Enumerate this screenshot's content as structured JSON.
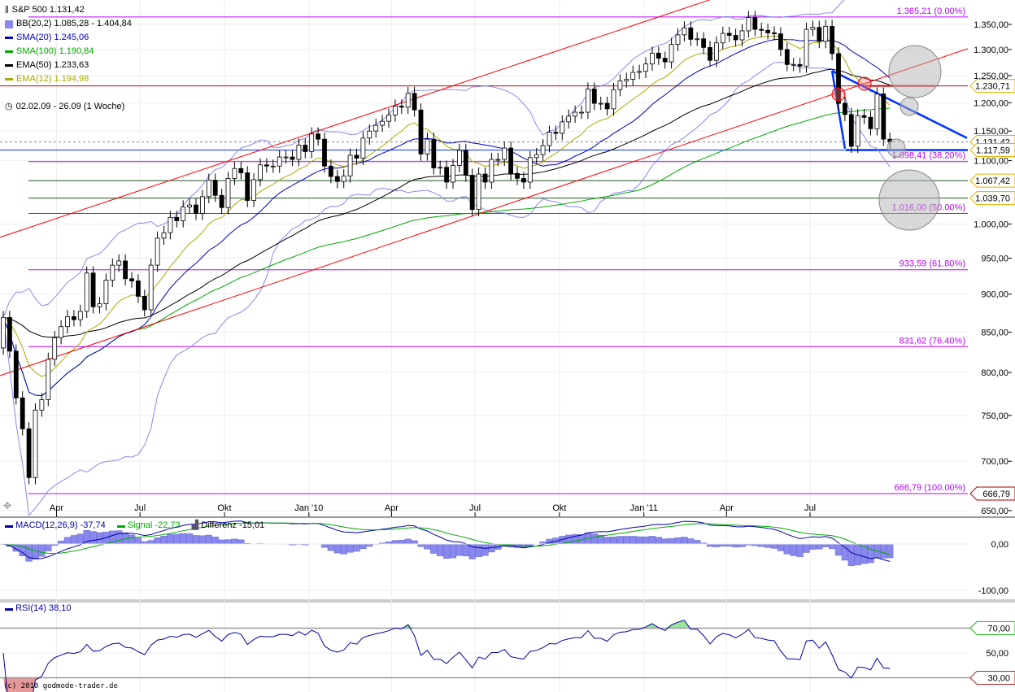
{
  "chart_data": [
    {
      "type": "candlestick",
      "title": "S&P 500 1.131,42",
      "period": "02.02.09 - 26.09 (1 Woche)",
      "scale": "log",
      "ylim": [
        650,
        1400
      ],
      "grid": true,
      "legend_placement": "top-left",
      "legend": [
        {
          "label": "BB(20,2) 1.085,28 - 1.404,84",
          "color": "#8888ee"
        },
        {
          "label": "SMA(20) 1.245,06",
          "color": "#0000bb"
        },
        {
          "label": "SMA(100) 1.190,84",
          "color": "#00aa00"
        },
        {
          "label": "EMA(50) 1.233,63",
          "color": "#000000"
        },
        {
          "label": "EMA(12) 1.194,98",
          "color": "#aaaa00"
        }
      ],
      "x_start": "2009-02-02",
      "x_interval": "1 week",
      "x_tick_labels": [
        "Apr",
        "Jul",
        "Okt",
        "Jan '10",
        "Apr",
        "Jul",
        "Okt",
        "Jan '11",
        "Apr",
        "Jul"
      ],
      "y_tick_labels": [
        "1.350,00",
        "1.300,00",
        "1.250,00",
        "1.200,00",
        "1.150,00",
        "1.100,00",
        "1.000,00",
        "950,00",
        "900,00",
        "850,00",
        "800,00",
        "750,00",
        "700,00",
        "650,00"
      ],
      "y_ticks": [
        1350,
        1300,
        1250,
        1200,
        1150,
        1100,
        1000,
        950,
        900,
        850,
        800,
        750,
        700,
        650
      ],
      "closes": [
        869,
        826,
        770,
        735,
        683,
        756,
        768,
        816,
        843,
        857,
        870,
        866,
        877,
        929,
        883,
        887,
        919,
        940,
        946,
        921,
        918,
        897,
        879,
        940,
        979,
        987,
        1010,
        1005,
        1026,
        1029,
        1016,
        1042,
        1068,
        1044,
        1025,
        1071,
        1087,
        1080,
        1036,
        1069,
        1093,
        1091,
        1091,
        1106,
        1106,
        1102,
        1126,
        1115,
        1145,
        1136,
        1091,
        1074,
        1066,
        1075,
        1109,
        1104,
        1138,
        1150,
        1160,
        1167,
        1178,
        1194,
        1192,
        1217,
        1187,
        1111,
        1136,
        1088,
        1089,
        1065,
        1092,
        1117,
        1076,
        1022,
        1078,
        1065,
        1102,
        1102,
        1121,
        1079,
        1071,
        1065,
        1105,
        1110,
        1125,
        1148,
        1146,
        1166,
        1176,
        1183,
        1183,
        1225,
        1199,
        1199,
        1189,
        1224,
        1240,
        1243,
        1256,
        1258,
        1272,
        1293,
        1283,
        1276,
        1310,
        1329,
        1343,
        1320,
        1321,
        1304,
        1279,
        1313,
        1332,
        1328,
        1319,
        1337,
        1364,
        1340,
        1338,
        1333,
        1331,
        1300,
        1271,
        1271,
        1268,
        1340,
        1344,
        1316,
        1346,
        1292,
        1199,
        1179,
        1124,
        1177,
        1174,
        1154,
        1216,
        1136,
        1131.42
      ],
      "fibonacci": [
        {
          "value": 1365.21,
          "label": "1.365,21 (0.00%)"
        },
        {
          "value": 1098.41,
          "label": "1.098,41 (38.20%)"
        },
        {
          "value": 1016.0,
          "label": "1.016,00 (50.00%)"
        },
        {
          "value": 933.59,
          "label": "933,59 (61.80%)"
        },
        {
          "value": 831.62,
          "label": "831,62 (76.40%)"
        },
        {
          "value": 666.79,
          "label": "666,79 (100.00%)"
        }
      ],
      "price_tags": [
        {
          "value": 1230.71,
          "label": "1.230,71",
          "color": "#e0b000"
        },
        {
          "value": 1131.42,
          "label": "1.131,42",
          "color": "#e0b000"
        },
        {
          "value": 1117.59,
          "label": "1.117,59",
          "color": "#e0b000"
        },
        {
          "value": 1067.42,
          "label": "1.067,42",
          "color": "#e0b000"
        },
        {
          "value": 1039.7,
          "label": "1.039,70",
          "color": "#e0b000"
        },
        {
          "value": 666.79,
          "label": "666,79",
          "color": "#aa0000"
        }
      ],
      "horizontal_lines": [
        {
          "value": 1230.71,
          "color": "#cc0000"
        },
        {
          "value": 1117.59,
          "color": "#0033ff"
        },
        {
          "value": 1067.42,
          "color": "#225522"
        },
        {
          "value": 1039.7,
          "color": "#225522"
        }
      ],
      "trendlines": [
        {
          "color": "#ff0000",
          "from": [
            "2009-01-29",
            980
          ],
          "to": [
            "2011-03-14",
            1401
          ]
        },
        {
          "color": "#ff0000",
          "from": [
            "2009-01-29",
            796
          ],
          "to": [
            "2011-12-19",
            1301
          ]
        },
        {
          "color": "#0033ff",
          "from": [
            "2011-07-25",
            1259
          ],
          "to": [
            "2011-12-19",
            1138
          ]
        },
        {
          "color": "#0033ff",
          "from": [
            "2011-07-25",
            1259
          ],
          "to": [
            "2011-08-08",
            1120
          ]
        }
      ]
    },
    {
      "type": "line",
      "legend": [
        {
          "label": "MACD(12,26,9) -37,74",
          "color": "#0000aa"
        },
        {
          "label": "Signal -22,73",
          "color": "#00aa00"
        },
        {
          "label": "Differenz -15,01",
          "color": "#8080e8"
        }
      ],
      "y_tick_labels": [
        "0,00",
        "-100,00"
      ],
      "y_ticks": [
        0,
        -100
      ]
    },
    {
      "type": "line",
      "legend": [
        {
          "label": "RSI(14) 38,10",
          "color": "#0000aa"
        }
      ],
      "y_tick_labels": [
        "50,00"
      ],
      "y_ticks": [
        50
      ],
      "levels": [
        {
          "value": 70,
          "label": "70,00",
          "color": "#22bb22"
        },
        {
          "value": 30,
          "label": "30,00",
          "color": "#bb2222"
        }
      ]
    }
  ],
  "footer": {
    "copyright": "(c) 2010 godmode-trader.de"
  }
}
